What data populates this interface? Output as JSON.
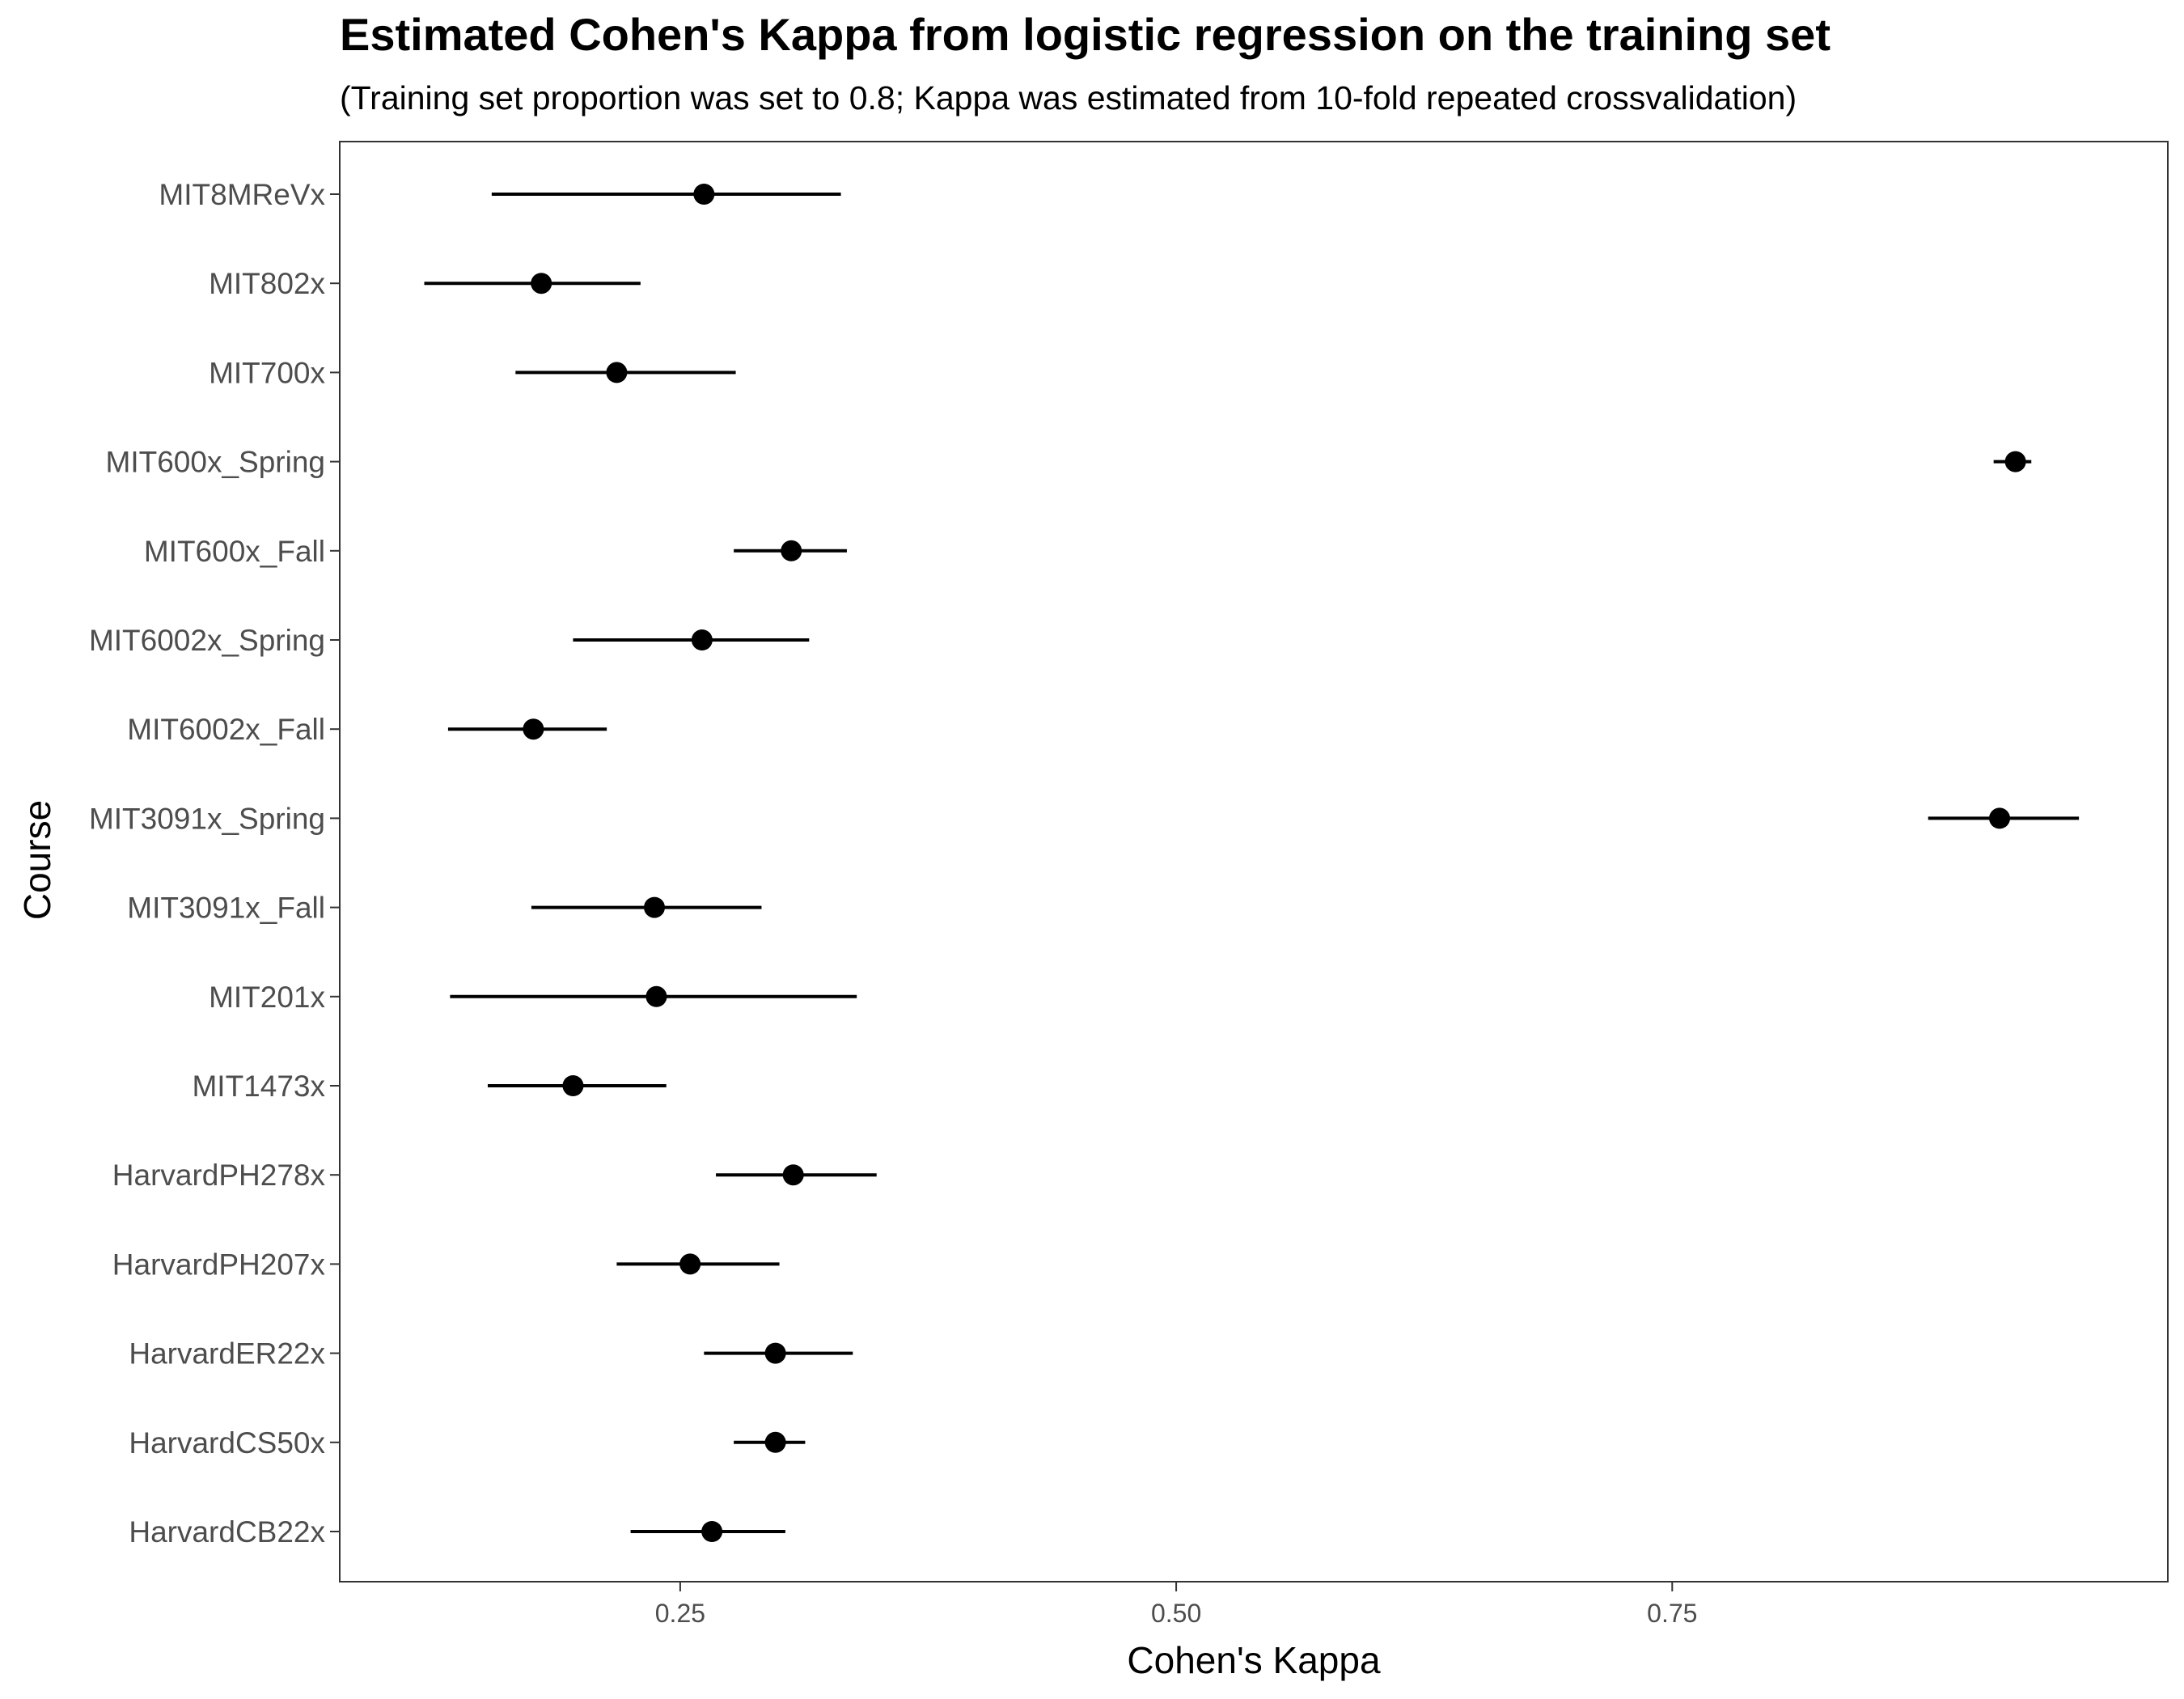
{
  "chart_data": {
    "type": "scatter",
    "title": "Estimated Cohen's Kappa from logistic regression on the training set",
    "subtitle": "(Training set proportion was set to 0.8; Kappa was estimated from 10-fold repeated crossvalidation)",
    "xlabel": "Cohen's Kappa",
    "ylabel": "Course",
    "xlim": [
      0.0784,
      0.9998
    ],
    "x_ticks": [
      0.25,
      0.5,
      0.75
    ],
    "x_tick_labels": [
      "0.25",
      "0.50",
      "0.75"
    ],
    "grid": false,
    "categories": [
      "MIT8MReVx",
      "MIT802x",
      "MIT700x",
      "MIT600x_Spring",
      "MIT600x_Fall",
      "MIT6002x_Spring",
      "MIT6002x_Fall",
      "MIT3091x_Spring",
      "MIT3091x_Fall",
      "MIT201x",
      "MIT1473x",
      "HarvardPH278x",
      "HarvardPH207x",
      "HarvardER22x",
      "HarvardCS50x",
      "HarvardCB22x"
    ],
    "series": [
      {
        "estimate": [
          0.262,
          0.18,
          0.218,
          0.923,
          0.306,
          0.261,
          0.176,
          0.915,
          0.237,
          0.238,
          0.196,
          0.307,
          0.255,
          0.298,
          0.298,
          0.266
        ],
        "lower": [
          0.155,
          0.121,
          0.167,
          0.912,
          0.277,
          0.196,
          0.133,
          0.879,
          0.175,
          0.134,
          0.153,
          0.268,
          0.218,
          0.262,
          0.277,
          0.225
        ],
        "upper": [
          0.331,
          0.23,
          0.278,
          0.931,
          0.334,
          0.315,
          0.213,
          0.955,
          0.291,
          0.339,
          0.243,
          0.349,
          0.3,
          0.337,
          0.313,
          0.303
        ]
      }
    ]
  },
  "colors": {
    "point": "#000000",
    "errorbar": "#000000",
    "panel_border": "#333333",
    "tick_text": "#4d4d4d"
  }
}
